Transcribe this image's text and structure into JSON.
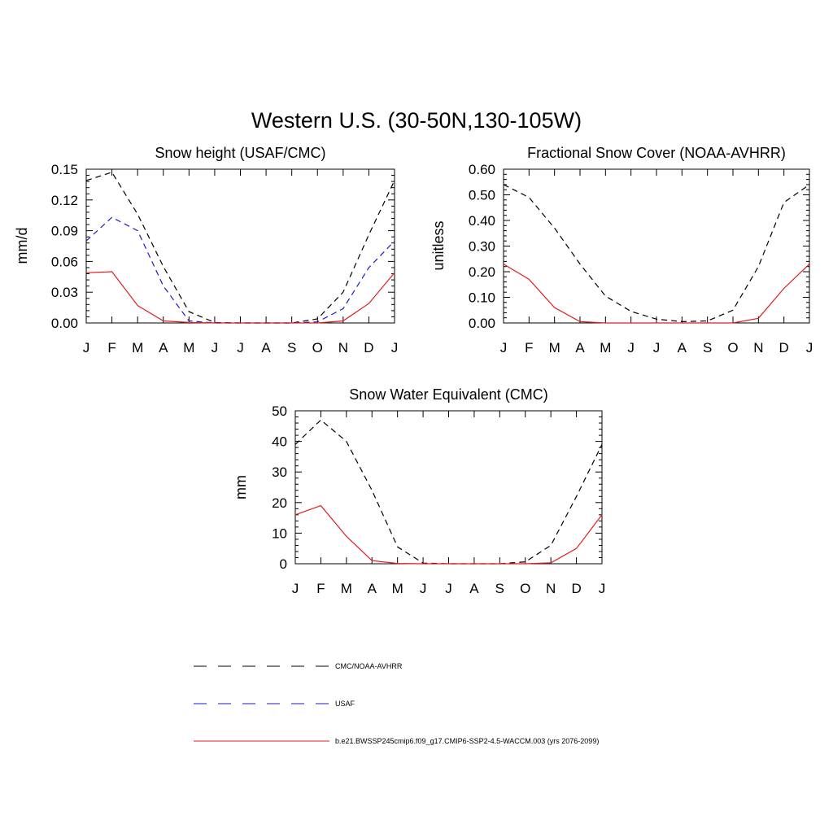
{
  "figure": {
    "title": "Western U.S. (30-50N,130-105W)"
  },
  "legend": {
    "entries": [
      {
        "name": "CMC/NOAA-AVHRR",
        "color": "#000000",
        "dash": "dashed"
      },
      {
        "name": "USAF",
        "color": "#1a1acc",
        "dash": "dashed"
      },
      {
        "name": "b.e21.BWSSP245cmip6.f09_g17.CMIP6-SSP2-4.5-WACCM.003 (yrs 2076-2099)",
        "color": "#e41a1c",
        "dash": "solid"
      }
    ]
  },
  "chart_data": [
    {
      "type": "line",
      "title": "Snow height (USAF/CMC)",
      "xlabel": "",
      "ylabel": "mm/d",
      "categories": [
        "J",
        "F",
        "M",
        "A",
        "M",
        "J",
        "J",
        "A",
        "S",
        "O",
        "N",
        "D",
        "J"
      ],
      "ylim": [
        0,
        0.15
      ],
      "yticks": [
        "0.00",
        "0.03",
        "0.06",
        "0.09",
        "0.12",
        "0.15"
      ],
      "grid": false,
      "series": [
        {
          "name": "CMC/NOAA-AVHRR",
          "values": [
            0.139,
            0.147,
            0.106,
            0.055,
            0.011,
            0.0005,
            0.0,
            0.0,
            0.0,
            0.004,
            0.03,
            0.086,
            0.139
          ]
        },
        {
          "name": "USAF",
          "values": [
            0.08,
            0.103,
            0.09,
            0.036,
            0.002,
            0.0,
            0.0,
            0.0,
            0.0,
            0.001,
            0.014,
            0.054,
            0.08
          ]
        },
        {
          "name": "b.e21.BWSSP245cmip6.f09_g17.CMIP6-SSP2-4.5-WACCM.003 (yrs 2076-2099)",
          "values": [
            0.049,
            0.05,
            0.017,
            0.002,
            0.0005,
            0.0,
            0.0,
            0.0,
            0.0,
            0.0,
            0.002,
            0.019,
            0.049
          ]
        }
      ]
    },
    {
      "type": "line",
      "title": "Fractional Snow Cover (NOAA-AVHRR)",
      "xlabel": "",
      "ylabel": "unitless",
      "categories": [
        "J",
        "F",
        "M",
        "A",
        "M",
        "J",
        "J",
        "A",
        "S",
        "O",
        "N",
        "D",
        "J"
      ],
      "ylim": [
        0,
        0.6
      ],
      "yticks": [
        "0.00",
        "0.10",
        "0.20",
        "0.30",
        "0.40",
        "0.50",
        "0.60"
      ],
      "grid": false,
      "series": [
        {
          "name": "CMC/NOAA-AVHRR",
          "values": [
            0.54,
            0.49,
            0.37,
            0.23,
            0.105,
            0.045,
            0.015,
            0.005,
            0.008,
            0.05,
            0.22,
            0.47,
            0.54
          ]
        },
        {
          "name": "b.e21.BWSSP245cmip6.f09_g17.CMIP6-SSP2-4.5-WACCM.003 (yrs 2076-2099)",
          "values": [
            0.23,
            0.17,
            0.06,
            0.005,
            0.0,
            0.0,
            0.0,
            0.0,
            0.0,
            0.0,
            0.018,
            0.135,
            0.23
          ]
        }
      ]
    },
    {
      "type": "line",
      "title": "Snow Water Equivalent (CMC)",
      "xlabel": "",
      "ylabel": "mm",
      "categories": [
        "J",
        "F",
        "M",
        "A",
        "M",
        "J",
        "J",
        "A",
        "S",
        "O",
        "N",
        "D",
        "J"
      ],
      "ylim": [
        0,
        50
      ],
      "yticks": [
        "0",
        "10",
        "20",
        "30",
        "40",
        "50"
      ],
      "grid": false,
      "series": [
        {
          "name": "CMC/NOAA-AVHRR",
          "values": [
            39,
            47,
            40,
            24,
            5.5,
            0.2,
            0.0,
            0.0,
            0.0,
            0.6,
            6,
            22,
            39
          ]
        },
        {
          "name": "b.e21.BWSSP245cmip6.f09_g17.CMIP6-SSP2-4.5-WACCM.003 (yrs 2076-2099)",
          "values": [
            16,
            19,
            9,
            1,
            0.1,
            0.0,
            0.0,
            0.0,
            0.0,
            0.0,
            0.3,
            5,
            16
          ]
        }
      ]
    }
  ]
}
